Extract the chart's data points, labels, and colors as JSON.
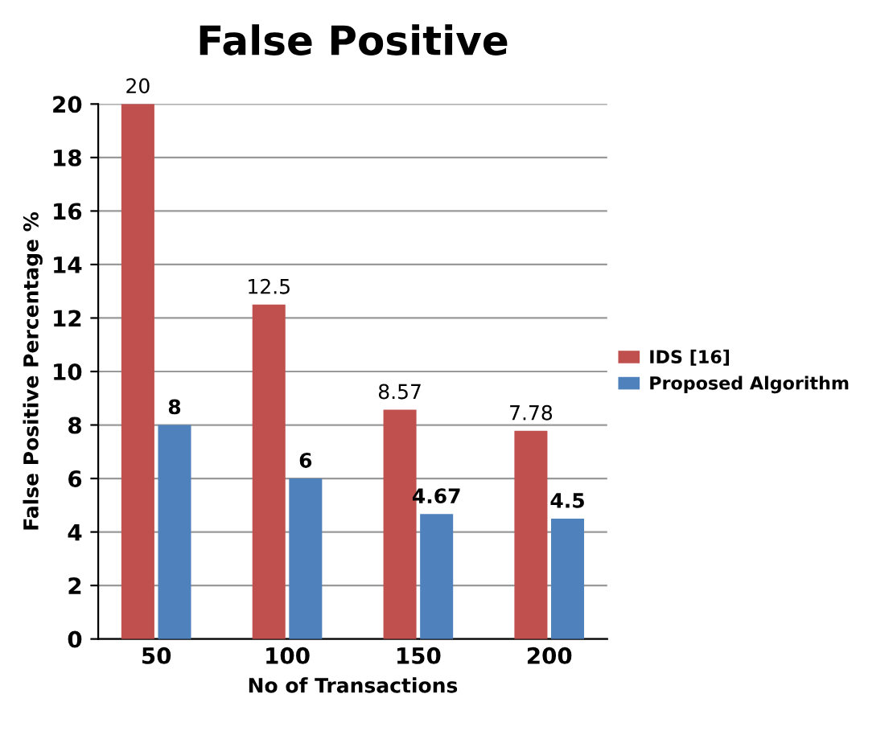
{
  "chart_data": {
    "type": "bar",
    "title": "False Positive",
    "xlabel": "No of Transactions",
    "ylabel": "False Positive Percentage %",
    "categories": [
      "50",
      "100",
      "150",
      "200"
    ],
    "series": [
      {
        "name": "IDS [16]",
        "color": "#c0504d",
        "values": [
          20,
          12.5,
          8.57,
          7.78
        ]
      },
      {
        "name": "Proposed Algorithm",
        "color": "#4f81bd",
        "values": [
          8,
          6,
          4.67,
          4.5
        ]
      }
    ],
    "ylim": [
      0,
      20
    ],
    "yticks": [
      0,
      2,
      4,
      6,
      8,
      10,
      12,
      14,
      16,
      18,
      20
    ],
    "grid": "y",
    "legend": "right",
    "data_labels": true
  }
}
